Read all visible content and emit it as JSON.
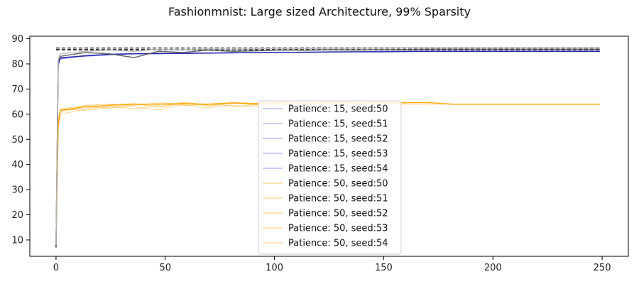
{
  "chart_data": {
    "type": "line",
    "title": "Fashionmnist: Large sized Architecture, 99% Sparsity",
    "xlabel": "",
    "ylabel": "",
    "xlim": [
      -12,
      262
    ],
    "ylim": [
      3.5,
      91
    ],
    "xticks": [
      0,
      50,
      100,
      150,
      200,
      250
    ],
    "yticks": [
      10,
      20,
      30,
      40,
      50,
      60,
      70,
      80,
      90
    ],
    "grid": false,
    "legend_position": "lower-center",
    "reference_lines": [
      {
        "y": 86.5,
        "style": "dashed",
        "color": "#9a9a9a"
      },
      {
        "y": 86.0,
        "style": "dashed",
        "color": "#9a9a9a"
      },
      {
        "y": 85.6,
        "style": "dashed",
        "color": "#000000"
      }
    ],
    "series": [
      {
        "name": "Patience: 15, seed:50",
        "color": "#7070ff",
        "x_end": 249,
        "values": [
          7,
          80,
          82,
          83,
          83.5,
          84,
          84,
          84,
          84.2,
          84.3,
          84.5,
          84.5,
          84.6,
          84.7,
          84.8,
          84.8,
          84.9,
          85,
          85,
          85,
          85,
          85,
          85,
          85,
          85
        ]
      },
      {
        "name": "Patience: 15, seed:51",
        "color": "#7070ff",
        "x_end": 249,
        "values": [
          8,
          79,
          82,
          83.2,
          83.8,
          84,
          84.2,
          84.1,
          84.3,
          84.4,
          84.5,
          84.6,
          84.6,
          84.8,
          84.8,
          84.9,
          85,
          85,
          85,
          85,
          85,
          85,
          85,
          85,
          85
        ]
      },
      {
        "name": "Patience: 15, seed:52",
        "color": "#7070ff",
        "x_end": 249,
        "values": [
          9,
          80,
          82.5,
          83,
          83.6,
          84,
          84,
          84.3,
          84.3,
          84.5,
          84.4,
          84.6,
          84.7,
          84.7,
          84.9,
          84.9,
          85,
          85,
          85,
          85,
          85,
          85,
          85,
          85,
          85
        ]
      },
      {
        "name": "Patience: 15, seed:53",
        "color": "#7070ff",
        "x_end": 249,
        "values": [
          7.5,
          80.5,
          82,
          83.4,
          83.7,
          84.1,
          84.1,
          84.2,
          84.4,
          84.4,
          84.6,
          84.5,
          84.8,
          84.8,
          84.8,
          85,
          85,
          85,
          85,
          85,
          85,
          85,
          85,
          85,
          85
        ]
      },
      {
        "name": "Patience: 15, seed:54",
        "color": "#7070ff",
        "x_end": 249,
        "values": [
          8.5,
          79.5,
          82.2,
          83.1,
          83.9,
          84.2,
          84,
          84.4,
          84.2,
          84.6,
          84.5,
          84.7,
          84.6,
          84.9,
          84.8,
          85,
          85,
          85,
          85,
          85,
          85,
          85,
          85,
          85,
          85
        ]
      },
      {
        "name": "Patience: 50, seed:50",
        "color": "#ffb530",
        "x_end": 249,
        "values": [
          10,
          58,
          62,
          63.5,
          64,
          63.5,
          64.5,
          64,
          63.8,
          64.5,
          64,
          65,
          64,
          64.5,
          64,
          64,
          64,
          64,
          64,
          64,
          64,
          64,
          64,
          64,
          64
        ]
      },
      {
        "name": "Patience: 50, seed:51",
        "color": "#ffb530",
        "x_end": 172,
        "values": [
          9,
          55,
          61,
          63,
          62.5,
          64,
          63,
          64.8,
          63.5,
          64.2,
          63.8,
          64.5,
          64.2,
          64.6,
          64.4,
          64.5,
          64.5,
          64.8
        ]
      },
      {
        "name": "Patience: 50, seed:52",
        "color": "#ffb530",
        "x_end": 165,
        "values": [
          8,
          54,
          60,
          62,
          63.2,
          62,
          64,
          63.5,
          64,
          63,
          64.4,
          63.8,
          64.7,
          64,
          64.5,
          64.3,
          64.6
        ]
      },
      {
        "name": "Patience: 50, seed:53",
        "color": "#ffb530",
        "x_end": 150,
        "values": [
          9.5,
          56,
          61.5,
          62.5,
          63.8,
          64.2,
          62.8,
          64.5,
          63.2,
          64.6,
          63.5,
          64.8,
          64,
          64.5,
          64.6,
          64.8
        ]
      },
      {
        "name": "Patience: 50, seed:54",
        "color": "#ffb530",
        "x_end": 158,
        "values": [
          8.5,
          57,
          62,
          61.5,
          62.5,
          63,
          61.8,
          63.8,
          62.5,
          63.5,
          63,
          64,
          63.5,
          64.2,
          64,
          64.4,
          64.2
        ]
      },
      {
        "name": "",
        "color": "#1f1fa0",
        "x_end": 249,
        "values": [
          7,
          80,
          82.4,
          83.2,
          83.8,
          84,
          84.1,
          84.2,
          84.3,
          84.4,
          84.5,
          84.6,
          84.6,
          84.7,
          84.8,
          84.8,
          84.9,
          85,
          85,
          85,
          85,
          85,
          85,
          85,
          85
        ]
      },
      {
        "name": "",
        "color": "#ffa500",
        "x_end": 249,
        "values": [
          9,
          56,
          61.5,
          63,
          63.5,
          64,
          64,
          64.2,
          64,
          64.5,
          64.2,
          64.6,
          64.4,
          64.8,
          64.5,
          64.6,
          64.6,
          64.6,
          64,
          64,
          64,
          64,
          64,
          64,
          64
        ]
      },
      {
        "name": "",
        "color": "#5a5a5a",
        "x_end": 249,
        "values": [
          7,
          81,
          83,
          84.5,
          84,
          82.5,
          85,
          84.5,
          85.5,
          85,
          85.2,
          85.5,
          85.4,
          85.6,
          85.5,
          85.6,
          85.7,
          85.8,
          85.8,
          85.8,
          85.8,
          85.8,
          85.8,
          85.8,
          85.8
        ]
      },
      {
        "name": "",
        "color": "#bdbdbd",
        "x_end": 249,
        "values": [
          8,
          82,
          84,
          85,
          85.5,
          85,
          85.8,
          85.6,
          86,
          85.8,
          86,
          86.2,
          86.1,
          86.2,
          86.3,
          86.3,
          86.4,
          86.4,
          86.4,
          86.4,
          86.4,
          86.4,
          86.4,
          86.4,
          86.4
        ]
      }
    ]
  }
}
